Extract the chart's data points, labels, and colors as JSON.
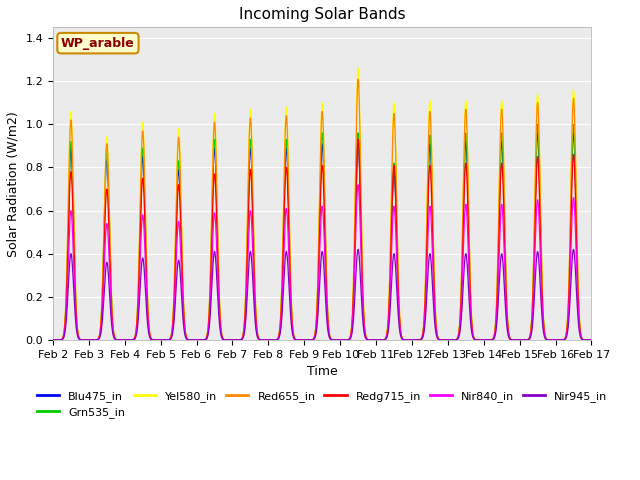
{
  "title": "Incoming Solar Bands",
  "xlabel": "Time",
  "ylabel": "Solar Radiation (W/m2)",
  "site_label": "WP_arable",
  "ylim": [
    0,
    1.45
  ],
  "n_days": 15,
  "samples_per_day": 500,
  "peak_sigma": 0.075,
  "day_peaks": [
    {
      "day": 0,
      "scales": [
        0.89,
        0.92,
        1.06,
        1.02,
        0.78,
        0.6,
        0.4
      ]
    },
    {
      "day": 1,
      "scales": [
        0.84,
        0.88,
        0.94,
        0.91,
        0.7,
        0.54,
        0.36
      ]
    },
    {
      "day": 2,
      "scales": [
        0.85,
        0.89,
        1.01,
        0.97,
        0.75,
        0.58,
        0.38
      ]
    },
    {
      "day": 3,
      "scales": [
        0.79,
        0.83,
        0.98,
        0.94,
        0.72,
        0.55,
        0.37
      ]
    },
    {
      "day": 4,
      "scales": [
        0.89,
        0.93,
        1.05,
        1.01,
        0.77,
        0.59,
        0.41
      ]
    },
    {
      "day": 5,
      "scales": [
        0.89,
        0.93,
        1.07,
        1.03,
        0.79,
        0.6,
        0.41
      ]
    },
    {
      "day": 6,
      "scales": [
        0.89,
        0.93,
        1.08,
        1.04,
        0.8,
        0.61,
        0.41
      ]
    },
    {
      "day": 7,
      "scales": [
        0.91,
        0.96,
        1.1,
        1.06,
        0.81,
        0.62,
        0.41
      ]
    },
    {
      "day": 8,
      "scales": [
        0.92,
        0.96,
        1.26,
        1.21,
        0.93,
        0.72,
        0.42
      ]
    },
    {
      "day": 9,
      "scales": [
        0.78,
        0.82,
        1.1,
        1.05,
        0.81,
        0.62,
        0.4
      ]
    },
    {
      "day": 10,
      "scales": [
        0.91,
        0.95,
        1.11,
        1.06,
        0.81,
        0.62,
        0.4
      ]
    },
    {
      "day": 11,
      "scales": [
        0.92,
        0.96,
        1.11,
        1.07,
        0.82,
        0.63,
        0.4
      ]
    },
    {
      "day": 12,
      "scales": [
        0.92,
        0.96,
        1.11,
        1.07,
        0.82,
        0.63,
        0.4
      ]
    },
    {
      "day": 13,
      "scales": [
        0.96,
        1.0,
        1.14,
        1.1,
        0.85,
        0.65,
        0.41
      ]
    },
    {
      "day": 14,
      "scales": [
        0.96,
        1.0,
        1.16,
        1.12,
        0.86,
        0.66,
        0.42
      ]
    }
  ],
  "series_order": [
    "Blu475_in",
    "Grn535_in",
    "Yel580_in",
    "Red655_in",
    "Redg715_in",
    "Nir840_in",
    "Nir945_in"
  ],
  "colors": [
    "#0000ff",
    "#00cc00",
    "#ffff00",
    "#ff8800",
    "#ff0000",
    "#ff00ff",
    "#8800cc"
  ],
  "linewidths": [
    0.9,
    0.9,
    0.9,
    0.9,
    0.9,
    0.9,
    0.9
  ],
  "plot_bg": "#ebebeb",
  "fig_bg": "#ffffff",
  "grid_color": "#ffffff",
  "yticks": [
    0.0,
    0.2,
    0.4,
    0.6,
    0.8,
    1.0,
    1.2,
    1.4
  ],
  "tick_label_fontsize": 8,
  "title_fontsize": 11,
  "axis_label_fontsize": 9,
  "legend_fontsize": 8,
  "site_label_fontsize": 9,
  "legend_ncol": 6
}
